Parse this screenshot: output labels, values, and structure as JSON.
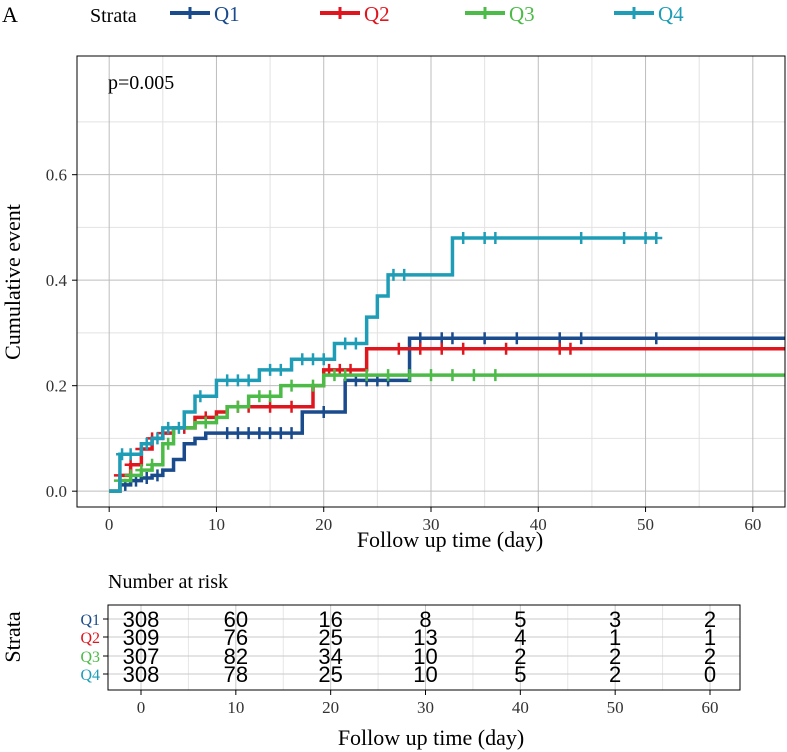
{
  "chart_data": {
    "type": "line",
    "panel_label": "A",
    "legend_title": "Strata",
    "annotation": "p=0.005",
    "xlabel": "Follow up time (day)",
    "ylabel": "Cumulative event",
    "xlim": [
      -3,
      63
    ],
    "ylim": [
      -0.03,
      0.825
    ],
    "xticks": [
      0,
      10,
      20,
      30,
      40,
      50,
      60
    ],
    "yticks": [
      0.0,
      0.2,
      0.4,
      0.6
    ],
    "ytick_labels": [
      "0.0",
      "0.2",
      "0.4",
      "0.6"
    ],
    "series": [
      {
        "name": "Q1",
        "color": "#1a4b8c",
        "steps": [
          [
            0,
            0
          ],
          [
            1,
            0.012
          ],
          [
            2,
            0.02
          ],
          [
            3,
            0.025
          ],
          [
            4,
            0.03
          ],
          [
            5,
            0.04
          ],
          [
            6,
            0.06
          ],
          [
            7,
            0.09
          ],
          [
            8,
            0.1
          ],
          [
            9,
            0.11
          ],
          [
            18,
            0.15
          ],
          [
            22,
            0.21
          ],
          [
            28,
            0.29
          ],
          [
            63,
            0.29
          ]
        ],
        "censors": [
          [
            1.5,
            0.012
          ],
          [
            2.5,
            0.02
          ],
          [
            3.5,
            0.025
          ],
          [
            4.5,
            0.03
          ],
          [
            11,
            0.11
          ],
          [
            12,
            0.11
          ],
          [
            13,
            0.11
          ],
          [
            14,
            0.11
          ],
          [
            15,
            0.11
          ],
          [
            16,
            0.11
          ],
          [
            17,
            0.11
          ],
          [
            20,
            0.15
          ],
          [
            23,
            0.21
          ],
          [
            24,
            0.21
          ],
          [
            25,
            0.21
          ],
          [
            26,
            0.21
          ],
          [
            29,
            0.29
          ],
          [
            31,
            0.29
          ],
          [
            32,
            0.29
          ],
          [
            35,
            0.29
          ],
          [
            38,
            0.29
          ],
          [
            42,
            0.29
          ],
          [
            44,
            0.29
          ],
          [
            51,
            0.29
          ]
        ]
      },
      {
        "name": "Q2",
        "color": "#e0161f",
        "steps": [
          [
            0,
            0
          ],
          [
            1,
            0.03
          ],
          [
            2,
            0.05
          ],
          [
            3,
            0.08
          ],
          [
            4,
            0.1
          ],
          [
            5,
            0.11
          ],
          [
            6,
            0.12
          ],
          [
            8,
            0.14
          ],
          [
            10,
            0.15
          ],
          [
            11,
            0.16
          ],
          [
            19,
            0.2
          ],
          [
            20,
            0.23
          ],
          [
            24,
            0.27
          ],
          [
            63,
            0.27
          ]
        ],
        "censors": [
          [
            1,
            0.03
          ],
          [
            2,
            0.05
          ],
          [
            3,
            0.08
          ],
          [
            4,
            0.1
          ],
          [
            5,
            0.11
          ],
          [
            7,
            0.12
          ],
          [
            9,
            0.14
          ],
          [
            12,
            0.16
          ],
          [
            13,
            0.16
          ],
          [
            15,
            0.16
          ],
          [
            17,
            0.16
          ],
          [
            20.5,
            0.23
          ],
          [
            21.5,
            0.23
          ],
          [
            22.5,
            0.23
          ],
          [
            27,
            0.27
          ],
          [
            29,
            0.27
          ],
          [
            31,
            0.27
          ],
          [
            33,
            0.27
          ],
          [
            37,
            0.27
          ],
          [
            42,
            0.27
          ],
          [
            43,
            0.27
          ]
        ]
      },
      {
        "name": "Q3",
        "color": "#4cbb47",
        "steps": [
          [
            0,
            0
          ],
          [
            1,
            0.02
          ],
          [
            2,
            0.03
          ],
          [
            3,
            0.04
          ],
          [
            4,
            0.05
          ],
          [
            5,
            0.09
          ],
          [
            6,
            0.12
          ],
          [
            8,
            0.13
          ],
          [
            10,
            0.14
          ],
          [
            11,
            0.16
          ],
          [
            13,
            0.18
          ],
          [
            16,
            0.2
          ],
          [
            20,
            0.22
          ],
          [
            63,
            0.22
          ]
        ],
        "censors": [
          [
            1,
            0.02
          ],
          [
            2,
            0.03
          ],
          [
            3,
            0.04
          ],
          [
            4,
            0.05
          ],
          [
            5.5,
            0.09
          ],
          [
            9,
            0.13
          ],
          [
            12,
            0.16
          ],
          [
            14,
            0.18
          ],
          [
            15,
            0.18
          ],
          [
            17,
            0.2
          ],
          [
            19,
            0.2
          ],
          [
            21,
            0.22
          ],
          [
            22,
            0.22
          ],
          [
            24,
            0.22
          ],
          [
            26,
            0.22
          ],
          [
            28,
            0.22
          ],
          [
            30,
            0.22
          ],
          [
            32,
            0.22
          ],
          [
            34,
            0.22
          ],
          [
            36,
            0.22
          ]
        ]
      },
      {
        "name": "Q4",
        "color": "#1f9db7",
        "steps": [
          [
            0,
            0
          ],
          [
            1,
            0.07
          ],
          [
            3,
            0.09
          ],
          [
            4,
            0.1
          ],
          [
            5,
            0.12
          ],
          [
            7,
            0.15
          ],
          [
            8,
            0.18
          ],
          [
            10,
            0.21
          ],
          [
            14,
            0.23
          ],
          [
            17,
            0.25
          ],
          [
            21,
            0.28
          ],
          [
            24,
            0.33
          ],
          [
            25,
            0.37
          ],
          [
            26,
            0.41
          ],
          [
            32,
            0.48
          ],
          [
            51,
            0.48
          ]
        ],
        "censors": [
          [
            1.2,
            0.07
          ],
          [
            2,
            0.07
          ],
          [
            3.5,
            0.09
          ],
          [
            4.5,
            0.1
          ],
          [
            5.5,
            0.12
          ],
          [
            6.5,
            0.12
          ],
          [
            8.5,
            0.18
          ],
          [
            11,
            0.21
          ],
          [
            12,
            0.21
          ],
          [
            13,
            0.21
          ],
          [
            15,
            0.23
          ],
          [
            16,
            0.23
          ],
          [
            18,
            0.25
          ],
          [
            19,
            0.25
          ],
          [
            20,
            0.25
          ],
          [
            22,
            0.28
          ],
          [
            23,
            0.28
          ],
          [
            26.5,
            0.41
          ],
          [
            27.5,
            0.41
          ],
          [
            33,
            0.48
          ],
          [
            35,
            0.48
          ],
          [
            36,
            0.48
          ],
          [
            44,
            0.48
          ],
          [
            48,
            0.48
          ],
          [
            50,
            0.48
          ],
          [
            51,
            0.48
          ]
        ]
      }
    ]
  },
  "risk_table": {
    "title": "Number at risk",
    "ylabel": "Strata",
    "xlabel": "Follow up time (day)",
    "xticks": [
      0,
      10,
      20,
      30,
      40,
      50,
      60
    ],
    "rows": [
      {
        "name": "Q1",
        "color": "#1a4b8c",
        "values": [
          "308",
          "60",
          "16",
          "8",
          "5",
          "3",
          "2"
        ]
      },
      {
        "name": "Q2",
        "color": "#e0161f",
        "values": [
          "309",
          "76",
          "25",
          "13",
          "4",
          "1",
          "1"
        ]
      },
      {
        "name": "Q3",
        "color": "#4cbb47",
        "values": [
          "307",
          "82",
          "34",
          "10",
          "2",
          "2",
          "2"
        ]
      },
      {
        "name": "Q4",
        "color": "#1f9db7",
        "values": [
          "308",
          "78",
          "25",
          "10",
          "5",
          "2",
          "0"
        ]
      }
    ]
  }
}
